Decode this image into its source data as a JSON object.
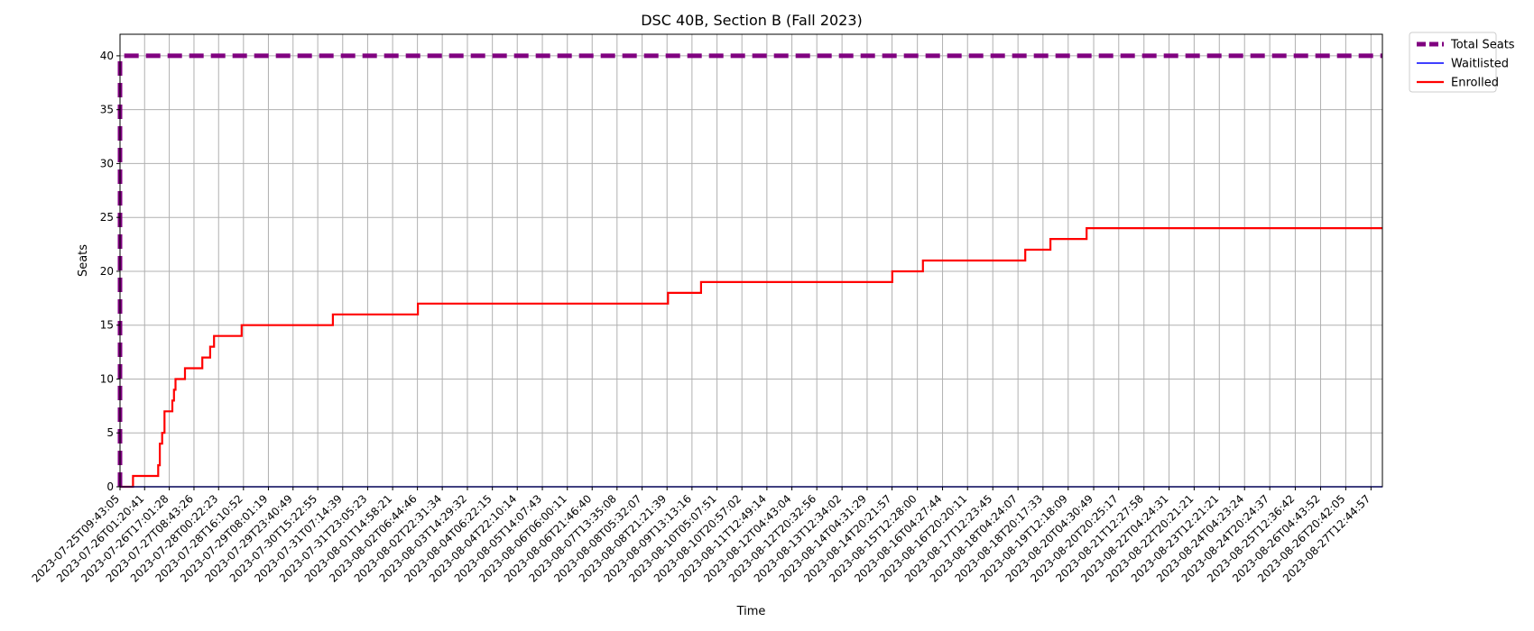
{
  "chart_data": {
    "type": "line",
    "title": "DSC 40B, Section B (Fall 2023)",
    "xlabel": "Time",
    "ylabel": "Seats",
    "ylim": [
      0,
      42
    ],
    "yticks": [
      0,
      5,
      10,
      15,
      20,
      25,
      30,
      35,
      40
    ],
    "grid": true,
    "legend_position": "outside-top-right",
    "x_start": "2023-07-25T09:43:05",
    "x_end": "2023-08-27T20:00:00",
    "xticks": [
      "2023-07-25T09:43:05",
      "2023-07-26T01:20:41",
      "2023-07-26T17:01:28",
      "2023-07-27T08:43:26",
      "2023-07-28T00:22:23",
      "2023-07-28T16:10:52",
      "2023-07-29T08:01:19",
      "2023-07-29T23:40:49",
      "2023-07-30T15:22:55",
      "2023-07-31T07:14:39",
      "2023-07-31T23:05:23",
      "2023-08-01T14:58:21",
      "2023-08-02T06:44:46",
      "2023-08-02T22:31:34",
      "2023-08-03T14:29:32",
      "2023-08-04T06:22:15",
      "2023-08-04T22:10:14",
      "2023-08-05T14:07:43",
      "2023-08-06T06:00:11",
      "2023-08-06T21:46:40",
      "2023-08-07T13:35:08",
      "2023-08-08T05:32:07",
      "2023-08-08T21:21:39",
      "2023-08-09T13:13:16",
      "2023-08-10T05:07:51",
      "2023-08-10T20:57:02",
      "2023-08-11T12:49:14",
      "2023-08-12T04:43:04",
      "2023-08-12T20:32:56",
      "2023-08-13T12:34:02",
      "2023-08-14T04:31:29",
      "2023-08-14T20:21:57",
      "2023-08-15T12:28:00",
      "2023-08-16T04:27:44",
      "2023-08-16T20:20:11",
      "2023-08-17T12:23:45",
      "2023-08-18T04:24:07",
      "2023-08-18T20:17:33",
      "2023-08-19T12:18:09",
      "2023-08-20T04:30:49",
      "2023-08-20T20:25:17",
      "2023-08-21T12:27:58",
      "2023-08-22T04:24:31",
      "2023-08-22T20:21:21",
      "2023-08-23T12:21:21",
      "2023-08-24T04:23:24",
      "2023-08-24T20:24:37",
      "2023-08-25T12:36:42",
      "2023-08-26T04:43:52",
      "2023-08-26T20:42:05",
      "2023-08-27T12:44:57"
    ],
    "series": [
      {
        "name": "Total Seats",
        "color": "#800080",
        "style": "dashed",
        "x": [
          "2023-07-25T09:43:05",
          "2023-07-25T09:43:05",
          "2023-07-25T12:00:00",
          "2023-08-27T20:00:00"
        ],
        "y": [
          0,
          39.5,
          40,
          40
        ]
      },
      {
        "name": "Waitlisted",
        "color": "#0000ff",
        "style": "solid",
        "x": [
          "2023-07-25T09:43:05",
          "2023-08-27T20:00:00"
        ],
        "y": [
          0,
          0
        ]
      },
      {
        "name": "Enrolled",
        "color": "#ff0000",
        "style": "step",
        "x": [
          "2023-07-25T09:43:05",
          "2023-07-25T18:00:00",
          "2023-07-26T10:00:00",
          "2023-07-26T11:00:00",
          "2023-07-26T12:30:00",
          "2023-07-26T14:00:00",
          "2023-07-26T19:00:00",
          "2023-07-26T20:00:00",
          "2023-07-26T21:00:00",
          "2023-07-27T03:00:00",
          "2023-07-27T14:00:00",
          "2023-07-27T19:00:00",
          "2023-07-27T20:30:00",
          "2023-07-27T21:30:00",
          "2023-07-27T22:30:00",
          "2023-07-28T15:00:00",
          "2023-07-31T01:00:00",
          "2023-08-02T07:00:00",
          "2023-08-08T22:00:00",
          "2023-08-09T19:00:00",
          "2023-08-14T20:30:00",
          "2023-08-15T16:00:00",
          "2023-08-18T09:00:00",
          "2023-08-19T01:00:00",
          "2023-08-20T00:00:00",
          "2023-08-27T20:00:00"
        ],
        "y": [
          0,
          1,
          2,
          4,
          5,
          7,
          8,
          9,
          10,
          11,
          12,
          13,
          13,
          14,
          14,
          15,
          16,
          17,
          18,
          19,
          20,
          21,
          22,
          23,
          24,
          24
        ]
      }
    ]
  }
}
